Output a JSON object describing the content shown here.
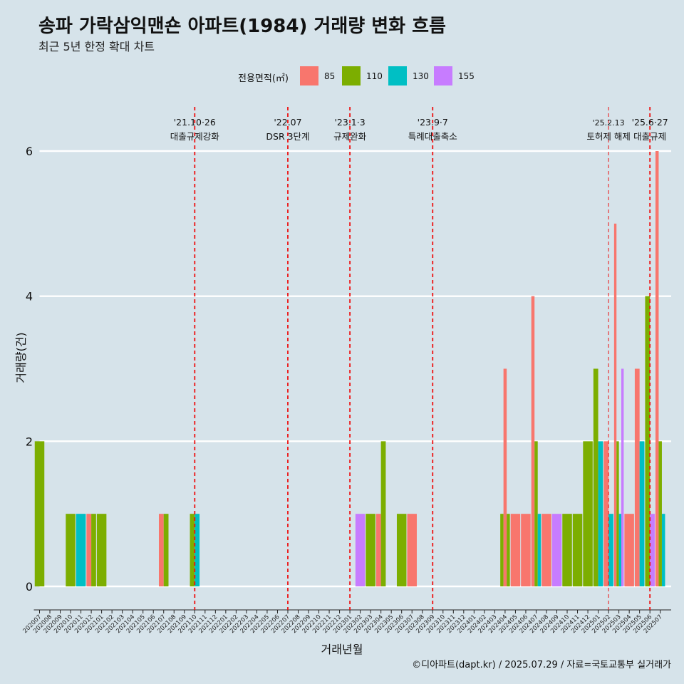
{
  "header": {
    "title": "송파 가락삼익맨숀 아파트(1984) 거래량 변화 흐름",
    "subtitle": "최근 5년 한정 확대 차트"
  },
  "caption": "©디아파트(dapt.kr) / 2025.07.29 / 자료=국토교통부 실거래가",
  "chart_data": {
    "type": "bar",
    "xlabel": "거래년월",
    "ylabel": "거래량(건)",
    "ylim": [
      0,
      6
    ],
    "yticks": [
      0,
      2,
      4,
      6
    ],
    "grid": "horizontal",
    "legend": {
      "title": "전용면적(㎡)",
      "placement": "top",
      "entries": [
        {
          "name": "85",
          "color": "#f8766d"
        },
        {
          "name": "110",
          "color": "#7cae00"
        },
        {
          "name": "130",
          "color": "#00bfc4"
        },
        {
          "name": "155",
          "color": "#c77cff"
        }
      ]
    },
    "categories": [
      "202007",
      "202008",
      "202009",
      "202010",
      "202011",
      "202012",
      "202101",
      "202102",
      "202103",
      "202104",
      "202105",
      "202106",
      "202107",
      "202108",
      "202109",
      "202110",
      "202111",
      "202112",
      "202201",
      "202202",
      "202203",
      "202204",
      "202205",
      "202206",
      "202207",
      "202208",
      "202209",
      "202210",
      "202211",
      "202212",
      "202301",
      "202302",
      "202303",
      "202304",
      "202305",
      "202306",
      "202307",
      "202308",
      "202309",
      "202310",
      "202311",
      "202312",
      "202401",
      "202402",
      "202403",
      "202404",
      "202405",
      "202406",
      "202407",
      "202408",
      "202409",
      "202410",
      "202411",
      "202412",
      "202501",
      "202502",
      "202503",
      "202504",
      "202505",
      "202506",
      "202507"
    ],
    "bars": [
      {
        "month": "202007",
        "series": [
          "110"
        ],
        "values": [
          2
        ]
      },
      {
        "month": "202010",
        "series": [
          "110"
        ],
        "values": [
          1
        ]
      },
      {
        "month": "202011",
        "series": [
          "130"
        ],
        "values": [
          1
        ]
      },
      {
        "month": "202012",
        "series": [
          "85",
          "110"
        ],
        "values": [
          1,
          1
        ]
      },
      {
        "month": "202101",
        "series": [
          "110"
        ],
        "values": [
          1
        ]
      },
      {
        "month": "202107",
        "series": [
          "85",
          "110"
        ],
        "values": [
          1,
          1
        ]
      },
      {
        "month": "202110",
        "series": [
          "110",
          "130"
        ],
        "values": [
          1,
          1
        ]
      },
      {
        "month": "202302",
        "series": [
          "155"
        ],
        "values": [
          1
        ]
      },
      {
        "month": "202303",
        "series": [
          "110"
        ],
        "values": [
          1
        ]
      },
      {
        "month": "202304",
        "series": [
          "85",
          "110"
        ],
        "values": [
          1,
          2
        ]
      },
      {
        "month": "202306",
        "series": [
          "110"
        ],
        "values": [
          1
        ]
      },
      {
        "month": "202307",
        "series": [
          "85"
        ],
        "values": [
          1
        ]
      },
      {
        "month": "202404",
        "series": [
          "110",
          "85",
          "110"
        ],
        "values": [
          1,
          3,
          1
        ]
      },
      {
        "month": "202405",
        "series": [
          "85"
        ],
        "values": [
          1
        ]
      },
      {
        "month": "202406",
        "series": [
          "85"
        ],
        "values": [
          1
        ]
      },
      {
        "month": "202407",
        "series": [
          "85",
          "110",
          "130"
        ],
        "values": [
          4,
          2,
          1
        ]
      },
      {
        "month": "202408",
        "series": [
          "85"
        ],
        "values": [
          1
        ]
      },
      {
        "month": "202409",
        "series": [
          "155"
        ],
        "values": [
          1
        ]
      },
      {
        "month": "202410",
        "series": [
          "110"
        ],
        "values": [
          1
        ]
      },
      {
        "month": "202411",
        "series": [
          "110"
        ],
        "values": [
          1
        ]
      },
      {
        "month": "202412",
        "series": [
          "110"
        ],
        "values": [
          2
        ]
      },
      {
        "month": "202501",
        "series": [
          "110",
          "130"
        ],
        "values": [
          3,
          2
        ]
      },
      {
        "month": "202502",
        "series": [
          "85",
          "130"
        ],
        "values": [
          2,
          1
        ]
      },
      {
        "month": "202503",
        "series": [
          "85",
          "110",
          "130",
          "155"
        ],
        "values": [
          5,
          2,
          1,
          3
        ]
      },
      {
        "month": "202504",
        "series": [
          "85"
        ],
        "values": [
          1
        ]
      },
      {
        "month": "202505",
        "series": [
          "85",
          "130"
        ],
        "values": [
          3,
          2
        ]
      },
      {
        "month": "202506",
        "series": [
          "110",
          "155"
        ],
        "values": [
          4,
          1
        ]
      },
      {
        "month": "202507",
        "series": [
          "85",
          "110",
          "130"
        ],
        "values": [
          6,
          2,
          1
        ]
      }
    ],
    "annotations": [
      {
        "month": "202110",
        "line1": "'21.10·26",
        "line2": "대출규제강화",
        "style": "dashed"
      },
      {
        "month": "202207",
        "line1": "'22.07",
        "line2": "DSR 3단계",
        "style": "dashed"
      },
      {
        "month": "202301",
        "line1": "'23.1·3",
        "line2": "규제완화",
        "style": "dashed"
      },
      {
        "month": "202309",
        "line1": "'23.9·7",
        "line2": "특례대출축소",
        "style": "dashed"
      },
      {
        "month": "202502",
        "line1": "'25.2.13",
        "line2": "토허제 해제",
        "style": "dashed-thin"
      },
      {
        "month": "202506",
        "line1": "'25.6·27",
        "line2": "대출규제",
        "style": "dashed"
      }
    ]
  }
}
